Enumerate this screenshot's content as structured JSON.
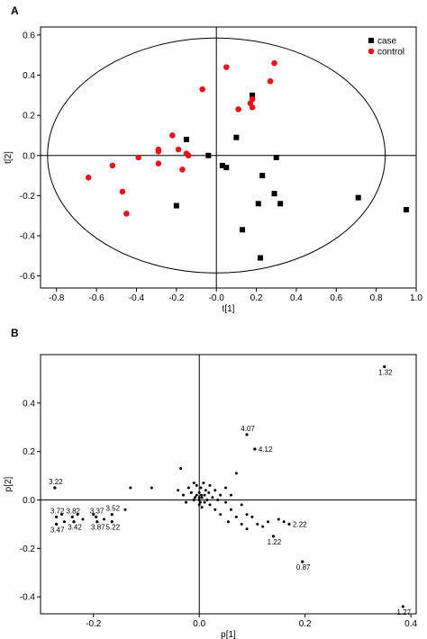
{
  "chart_data": [
    {
      "type": "scatter",
      "panel_label": "A",
      "title": "",
      "xlabel": "t[1]",
      "ylabel": "t[2]",
      "xlim": [
        -0.88,
        1.0
      ],
      "ylim": [
        -0.66,
        0.64
      ],
      "xticks": [
        "-0.8",
        "-0.6",
        "-0.4",
        "-0.2",
        "-0.0",
        "0.2",
        "0.4",
        "0.6",
        "0.8",
        "1.0"
      ],
      "xtick_values": [
        -0.8,
        -0.6,
        -0.4,
        -0.2,
        0.0,
        0.2,
        0.4,
        0.6,
        0.8,
        1.0
      ],
      "yticks": [
        "0.6",
        "0.4",
        "0.2",
        "0.0",
        "-0.2",
        "-0.4",
        "-0.6"
      ],
      "ytick_values": [
        0.6,
        0.4,
        0.2,
        0.0,
        -0.2,
        -0.4,
        -0.6
      ],
      "ellipse": {
        "cx": 0.0,
        "cy": 0.0,
        "rx": 0.845,
        "ry": 0.585
      },
      "crosshair": {
        "x": 0.0,
        "y": 0.0
      },
      "legend_position": "top-right",
      "series": [
        {
          "name": "case",
          "marker": "square",
          "color": "#000000",
          "points": [
            [
              -0.15,
              0.08
            ],
            [
              -0.2,
              -0.25
            ],
            [
              -0.04,
              0.0
            ],
            [
              0.03,
              -0.05
            ],
            [
              0.05,
              -0.06
            ],
            [
              0.1,
              0.09
            ],
            [
              0.18,
              0.3
            ],
            [
              0.13,
              -0.37
            ],
            [
              0.21,
              -0.24
            ],
            [
              0.23,
              -0.1
            ],
            [
              0.22,
              -0.51
            ],
            [
              0.29,
              -0.19
            ],
            [
              0.3,
              -0.01
            ],
            [
              0.32,
              -0.24
            ],
            [
              0.71,
              -0.21
            ],
            [
              0.95,
              -0.27
            ]
          ]
        },
        {
          "name": "control",
          "marker": "circle",
          "color": "#e8141c",
          "points": [
            [
              -0.64,
              -0.11
            ],
            [
              -0.52,
              -0.05
            ],
            [
              -0.47,
              -0.18
            ],
            [
              -0.45,
              -0.29
            ],
            [
              -0.39,
              -0.01
            ],
            [
              -0.29,
              0.03
            ],
            [
              -0.29,
              0.02
            ],
            [
              -0.29,
              -0.04
            ],
            [
              -0.22,
              0.1
            ],
            [
              -0.19,
              0.03
            ],
            [
              -0.17,
              -0.07
            ],
            [
              -0.14,
              0.0
            ],
            [
              -0.15,
              0.01
            ],
            [
              -0.07,
              0.33
            ],
            [
              0.05,
              0.44
            ],
            [
              0.11,
              0.23
            ],
            [
              0.17,
              0.26
            ],
            [
              0.18,
              0.24
            ],
            [
              0.18,
              0.28
            ],
            [
              0.27,
              0.37
            ],
            [
              0.29,
              0.46
            ]
          ]
        }
      ]
    },
    {
      "type": "scatter",
      "panel_label": "B",
      "title": "",
      "xlabel": "p[1]",
      "ylabel": "p[2]",
      "xlim": [
        -0.3,
        0.41
      ],
      "ylim": [
        -0.47,
        0.6
      ],
      "xticks": [
        "-0.2",
        "0.0",
        "0.2",
        "0.4"
      ],
      "xtick_values": [
        -0.2,
        0.0,
        0.2,
        0.4
      ],
      "yticks": [
        "0.4",
        "0.2",
        "0.0",
        "-0.2",
        "-0.4"
      ],
      "ytick_values": [
        0.4,
        0.2,
        0.0,
        -0.2,
        -0.4
      ],
      "crosshair": {
        "x": 0.0,
        "y": 0.0
      },
      "labeled_points": [
        {
          "label": "1.32",
          "x": 0.35,
          "y": 0.55
        },
        {
          "label": "4.07",
          "x": 0.09,
          "y": 0.27
        },
        {
          "label": "4.12",
          "x": 0.105,
          "y": 0.21
        },
        {
          "label": "3.22",
          "x": -0.273,
          "y": 0.05
        },
        {
          "label": "3.72",
          "x": -0.27,
          "y": -0.07
        },
        {
          "label": "3.82",
          "x": -0.24,
          "y": -0.07
        },
        {
          "label": "3.37",
          "x": -0.195,
          "y": -0.07
        },
        {
          "label": "3.52",
          "x": -0.165,
          "y": -0.06
        },
        {
          "label": "3.42",
          "x": -0.237,
          "y": -0.09
        },
        {
          "label": "3.87",
          "x": -0.193,
          "y": -0.09
        },
        {
          "label": "5.22",
          "x": -0.165,
          "y": -0.09
        },
        {
          "label": "3.47",
          "x": -0.27,
          "y": -0.1
        },
        {
          "label": "2.22",
          "x": 0.17,
          "y": -0.1
        },
        {
          "label": "1.22",
          "x": 0.14,
          "y": -0.15
        },
        {
          "label": "0.87",
          "x": 0.195,
          "y": -0.255
        },
        {
          "label": "1.27",
          "x": 0.385,
          "y": -0.44
        }
      ],
      "points": [
        [
          -0.26,
          -0.06
        ],
        [
          -0.255,
          -0.09
        ],
        [
          -0.23,
          -0.06
        ],
        [
          -0.22,
          -0.08
        ],
        [
          -0.2,
          -0.06
        ],
        [
          -0.18,
          -0.08
        ],
        [
          -0.14,
          -0.04
        ],
        [
          -0.13,
          0.05
        ],
        [
          -0.09,
          0.05
        ],
        [
          -0.04,
          0.04
        ],
        [
          -0.035,
          0.13
        ],
        [
          -0.03,
          0.02
        ],
        [
          -0.025,
          -0.01
        ],
        [
          -0.02,
          0.05
        ],
        [
          -0.015,
          0.03
        ],
        [
          -0.01,
          0.07
        ],
        [
          -0.01,
          0.0
        ],
        [
          -0.005,
          0.06
        ],
        [
          0.0,
          0.0
        ],
        [
          0.0,
          0.03
        ],
        [
          0.0,
          -0.02
        ],
        [
          0.003,
          0.05
        ],
        [
          0.005,
          0.01
        ],
        [
          0.005,
          -0.03
        ],
        [
          0.008,
          0.07
        ],
        [
          0.01,
          0.02
        ],
        [
          0.01,
          -0.01
        ],
        [
          0.012,
          0.04
        ],
        [
          0.015,
          0.0
        ],
        [
          0.018,
          0.03
        ],
        [
          0.02,
          -0.02
        ],
        [
          0.02,
          0.06
        ],
        [
          0.025,
          0.01
        ],
        [
          0.03,
          0.04
        ],
        [
          0.03,
          -0.04
        ],
        [
          0.035,
          0.0
        ],
        [
          0.04,
          0.02
        ],
        [
          0.04,
          -0.06
        ],
        [
          0.05,
          -0.01
        ],
        [
          0.05,
          0.05
        ],
        [
          0.055,
          -0.09
        ],
        [
          0.06,
          0.02
        ],
        [
          0.06,
          -0.04
        ],
        [
          0.07,
          -0.07
        ],
        [
          0.07,
          0.11
        ],
        [
          0.08,
          -0.1
        ],
        [
          0.08,
          -0.02
        ],
        [
          0.09,
          -0.06
        ],
        [
          0.09,
          -0.12
        ],
        [
          0.1,
          -0.07
        ],
        [
          0.11,
          -0.1
        ],
        [
          0.12,
          -0.11
        ],
        [
          0.13,
          -0.09
        ],
        [
          0.15,
          -0.08
        ],
        [
          0.16,
          -0.09
        ],
        [
          -0.005,
          0.02
        ],
        [
          0.0,
          0.01
        ],
        [
          0.002,
          -0.01
        ],
        [
          0.004,
          0.02
        ],
        [
          -0.008,
          0.01
        ]
      ]
    }
  ]
}
